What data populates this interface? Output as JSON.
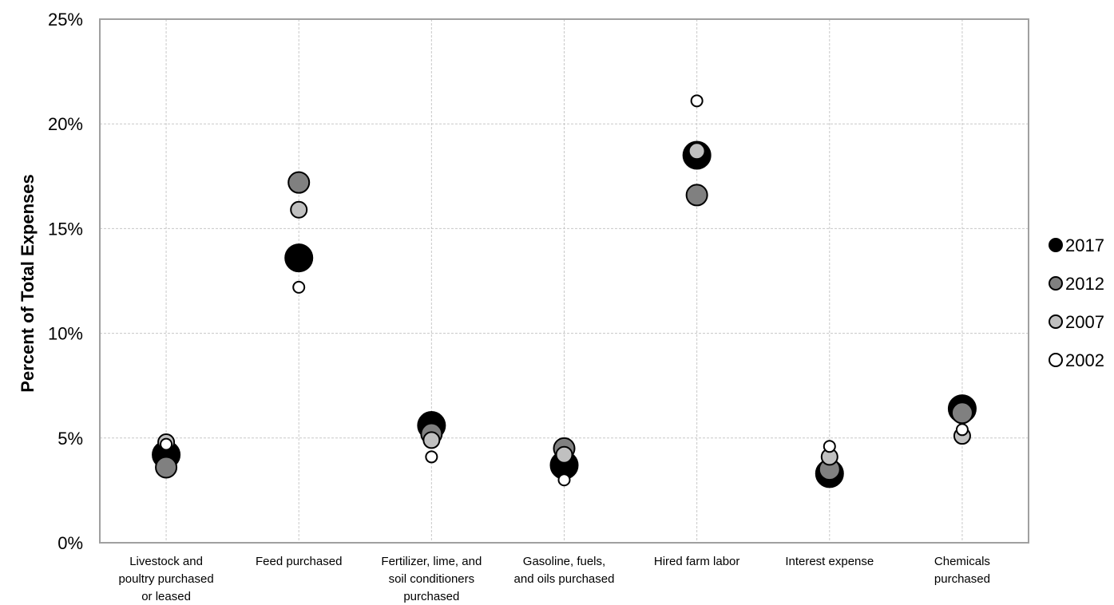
{
  "chart_data": {
    "type": "scatter",
    "title": "",
    "xlabel": "",
    "ylabel": "Percent of Total Expenses",
    "ylim": [
      0,
      25
    ],
    "yticks": [
      "0%",
      "5%",
      "10%",
      "15%",
      "20%",
      "25%"
    ],
    "grid": true,
    "legend_position": "right",
    "categories": [
      [
        "Livestock and",
        "poultry purchased",
        "or leased"
      ],
      [
        "Feed purchased"
      ],
      [
        "Fertilizer, lime, and",
        "soil conditioners",
        "purchased"
      ],
      [
        "Gasoline, fuels,",
        "and oils purchased"
      ],
      [
        "Hired farm labor"
      ],
      [
        "Interest expense"
      ],
      [
        "Chemicals",
        "purchased"
      ]
    ],
    "series": [
      {
        "name": "2002",
        "color": "#ffffff",
        "values": [
          4.7,
          12.2,
          4.1,
          3.0,
          21.1,
          4.6,
          5.4
        ]
      },
      {
        "name": "2007",
        "color": "#c0c0c0",
        "values": [
          4.8,
          15.9,
          4.9,
          4.2,
          18.7,
          4.1,
          5.1
        ]
      },
      {
        "name": "2012",
        "color": "#808080",
        "values": [
          3.6,
          17.2,
          5.2,
          4.5,
          16.6,
          3.5,
          6.2
        ]
      },
      {
        "name": "2017",
        "color": "#000000",
        "values": [
          4.2,
          13.6,
          5.6,
          3.7,
          18.5,
          3.3,
          6.4
        ]
      }
    ],
    "legend_order": [
      "2017",
      "2012",
      "2007",
      "2002"
    ]
  }
}
